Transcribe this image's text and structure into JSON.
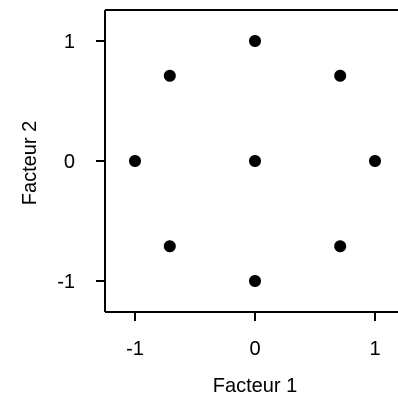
{
  "chart_data": {
    "type": "scatter",
    "title": "",
    "xlabel": "Facteur 1",
    "ylabel": "Facteur 2",
    "xlim": [
      -1.25,
      1.25
    ],
    "ylim": [
      -1.25,
      1.25
    ],
    "xticks": [
      -1,
      0,
      1
    ],
    "yticks": [
      -1,
      0,
      1
    ],
    "xtick_labels": [
      "-1",
      "0",
      "1"
    ],
    "ytick_labels": [
      "-1",
      "0",
      "1"
    ],
    "grid": false,
    "marker_color": "#000000",
    "points": [
      {
        "x": 0,
        "y": 1
      },
      {
        "x": -0.71,
        "y": 0.71
      },
      {
        "x": 0.71,
        "y": 0.71
      },
      {
        "x": -1,
        "y": 0
      },
      {
        "x": 0,
        "y": 0
      },
      {
        "x": 1,
        "y": 0
      },
      {
        "x": -0.71,
        "y": -0.71
      },
      {
        "x": 0.71,
        "y": -0.71
      },
      {
        "x": 0,
        "y": -1
      }
    ]
  }
}
